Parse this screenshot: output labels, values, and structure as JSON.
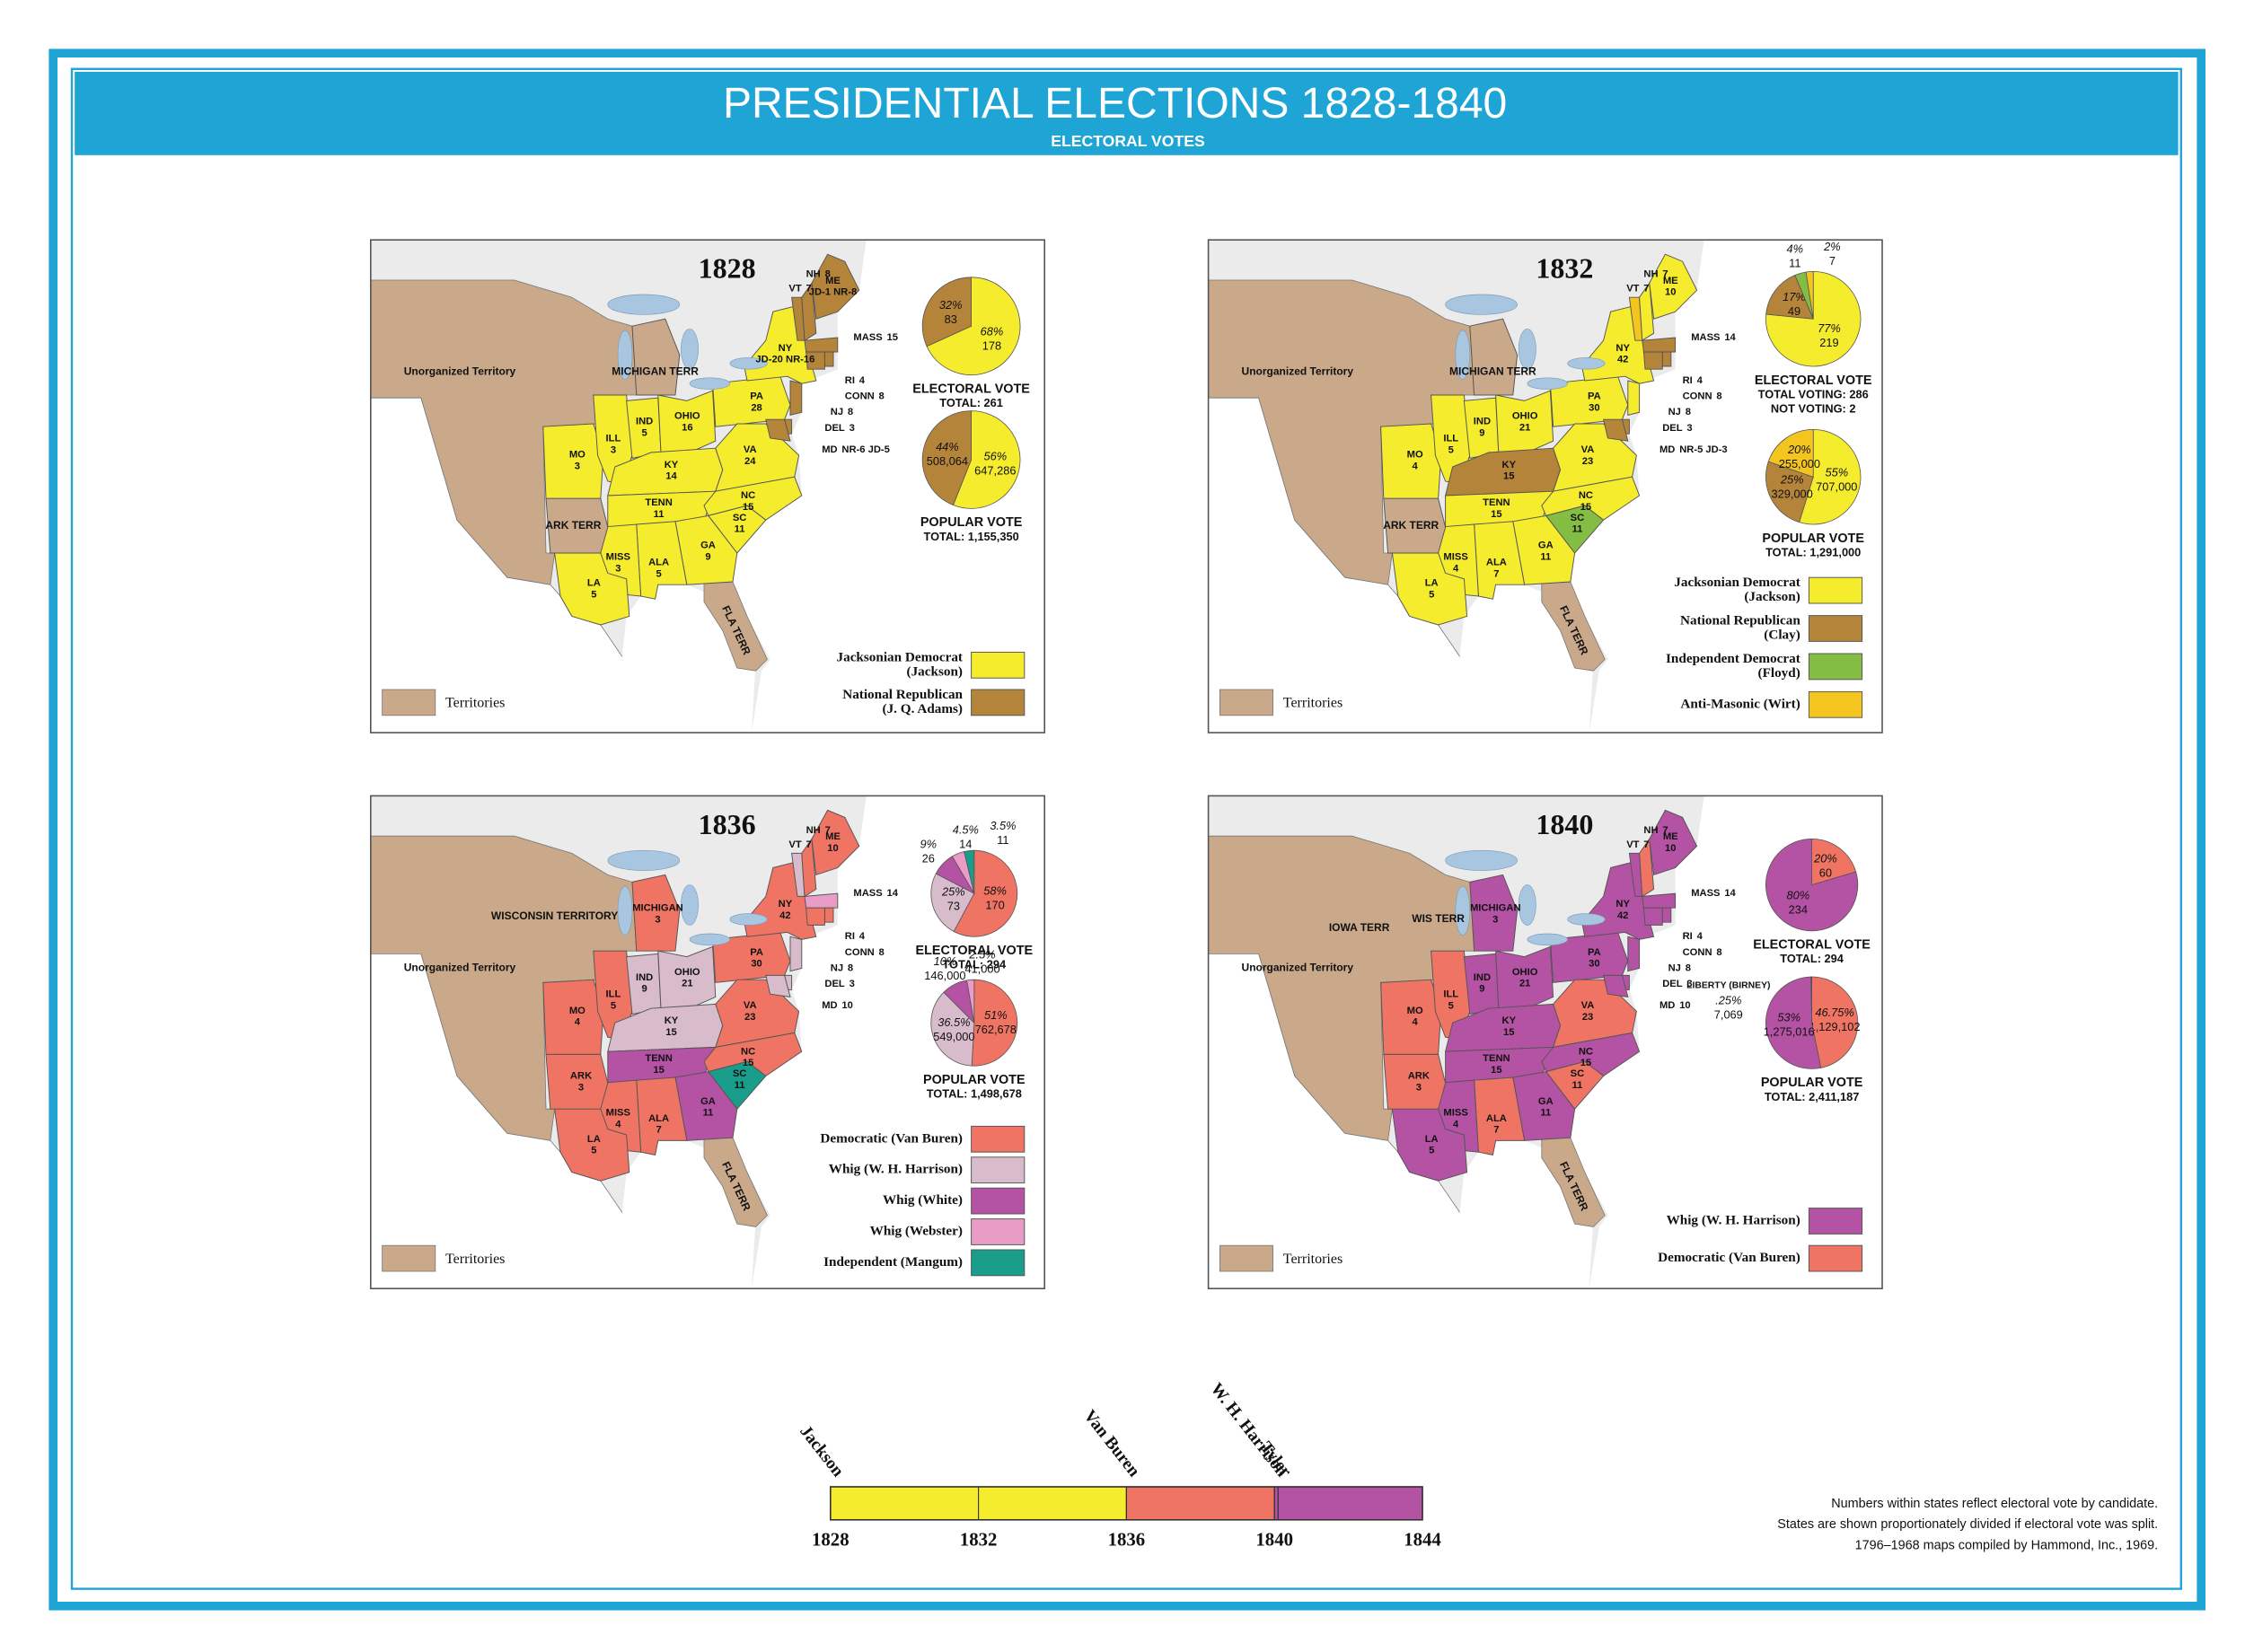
{
  "header": {
    "title": "PRESIDENTIAL ELECTIONS 1828-1840",
    "subtitle": "ELECTORAL VOTES"
  },
  "territory_color": "#c9a98a",
  "maps": [
    {
      "year": "1828",
      "territories": [
        "Unorganized Territory",
        "MICHIGAN TERR",
        "ARK TERR",
        "FLA TERR"
      ],
      "territory_key": "Territories",
      "states": [
        {
          "name": "MO",
          "votes": 3,
          "color": "#f5ec2d"
        },
        {
          "name": "ILL",
          "votes": 3,
          "color": "#f5ec2d"
        },
        {
          "name": "IND",
          "votes": 5,
          "color": "#f5ec2d"
        },
        {
          "name": "OHIO",
          "votes": 16,
          "color": "#f5ec2d"
        },
        {
          "name": "PA",
          "votes": 28,
          "color": "#f5ec2d"
        },
        {
          "name": "KY",
          "votes": 14,
          "color": "#f5ec2d"
        },
        {
          "name": "VA",
          "votes": 24,
          "color": "#f5ec2d"
        },
        {
          "name": "TENN",
          "votes": 11,
          "color": "#f5ec2d"
        },
        {
          "name": "NC",
          "votes": 15,
          "color": "#f5ec2d"
        },
        {
          "name": "SC",
          "votes": 11,
          "color": "#f5ec2d"
        },
        {
          "name": "GA",
          "votes": 9,
          "color": "#f5ec2d"
        },
        {
          "name": "ALA",
          "votes": 5,
          "color": "#f5ec2d"
        },
        {
          "name": "MISS",
          "votes": 3,
          "color": "#f5ec2d"
        },
        {
          "name": "LA",
          "votes": 5,
          "color": "#f5ec2d"
        },
        {
          "name": "NY",
          "votes": "JD-20 NR-16",
          "color": "#f5ec2d"
        },
        {
          "name": "VT",
          "votes": 7,
          "color": "#b5843b"
        },
        {
          "name": "NH",
          "votes": 8,
          "color": "#b5843b"
        },
        {
          "name": "ME",
          "votes": "JD-1 NR-8",
          "color": "#b5843b"
        },
        {
          "name": "MASS",
          "votes": 15,
          "color": "#b5843b"
        },
        {
          "name": "RI",
          "votes": 4,
          "color": "#b5843b"
        },
        {
          "name": "CONN",
          "votes": 8,
          "color": "#b5843b"
        },
        {
          "name": "NJ",
          "votes": 8,
          "color": "#b5843b"
        },
        {
          "name": "DEL",
          "votes": 3,
          "color": "#b5843b"
        },
        {
          "name": "MD",
          "votes": "NR-6 JD-5",
          "color": "#b5843b"
        }
      ],
      "electoral": {
        "caption": [
          "ELECTORAL VOTE",
          "TOTAL: 261"
        ],
        "slices": [
          {
            "value": 178,
            "percent_label": "68%",
            "color": "#f5ec2d"
          },
          {
            "value": 83,
            "percent_label": "32%",
            "color": "#b5843b"
          }
        ]
      },
      "popular": {
        "caption": [
          "POPULAR VOTE",
          "TOTAL: 1,155,350"
        ],
        "slices": [
          {
            "value": 647286,
            "value_label": "647,286",
            "percent_label": "56%",
            "color": "#f5ec2d"
          },
          {
            "value": 508064,
            "value_label": "508,064",
            "percent_label": "44%",
            "color": "#b5843b"
          }
        ]
      },
      "legend": [
        {
          "label": "Jacksonian Democrat",
          "sublabel": "(Jackson)",
          "color": "#f5ec2d"
        },
        {
          "label": "National Republican",
          "sublabel": "(J. Q. Adams)",
          "color": "#b5843b"
        }
      ]
    },
    {
      "year": "1832",
      "territories": [
        "Unorganized Territory",
        "MICHIGAN TERR",
        "ARK TERR",
        "FLA TERR"
      ],
      "territory_key": "Territories",
      "states": [
        {
          "name": "MO",
          "votes": 4,
          "color": "#f5ec2d"
        },
        {
          "name": "ILL",
          "votes": 5,
          "color": "#f5ec2d"
        },
        {
          "name": "IND",
          "votes": 9,
          "color": "#f5ec2d"
        },
        {
          "name": "OHIO",
          "votes": 21,
          "color": "#f5ec2d"
        },
        {
          "name": "PA",
          "votes": 30,
          "color": "#f5ec2d"
        },
        {
          "name": "KY",
          "votes": 15,
          "color": "#b5843b"
        },
        {
          "name": "VA",
          "votes": 23,
          "color": "#f5ec2d"
        },
        {
          "name": "TENN",
          "votes": 15,
          "color": "#f5ec2d"
        },
        {
          "name": "NC",
          "votes": 15,
          "color": "#f5ec2d"
        },
        {
          "name": "SC",
          "votes": 11,
          "color": "#84bd44"
        },
        {
          "name": "GA",
          "votes": 11,
          "color": "#f5ec2d"
        },
        {
          "name": "ALA",
          "votes": 7,
          "color": "#f5ec2d"
        },
        {
          "name": "MISS",
          "votes": 4,
          "color": "#f5ec2d"
        },
        {
          "name": "LA",
          "votes": 5,
          "color": "#f5ec2d"
        },
        {
          "name": "NY",
          "votes": 42,
          "color": "#f5ec2d"
        },
        {
          "name": "VT",
          "votes": 7,
          "color": "#f4c51f"
        },
        {
          "name": "NH",
          "votes": 7,
          "color": "#f5ec2d"
        },
        {
          "name": "ME",
          "votes": 10,
          "color": "#f5ec2d"
        },
        {
          "name": "MASS",
          "votes": 14,
          "color": "#b5843b"
        },
        {
          "name": "RI",
          "votes": 4,
          "color": "#b5843b"
        },
        {
          "name": "CONN",
          "votes": 8,
          "color": "#b5843b"
        },
        {
          "name": "NJ",
          "votes": 8,
          "color": "#f5ec2d"
        },
        {
          "name": "DEL",
          "votes": 3,
          "color": "#b5843b"
        },
        {
          "name": "MD",
          "votes": "NR-5 JD-3",
          "color": "#b5843b"
        }
      ],
      "electoral": {
        "caption": [
          "ELECTORAL VOTE",
          "TOTAL VOTING: 286",
          "NOT VOTING: 2"
        ],
        "slices": [
          {
            "value": 219,
            "percent_label": "77%",
            "color": "#f5ec2d"
          },
          {
            "value": 49,
            "percent_label": "17%",
            "color": "#b5843b"
          },
          {
            "value": 11,
            "percent_label": "4%",
            "color": "#84bd44"
          },
          {
            "value": 7,
            "percent_label": "2%",
            "color": "#f4c51f"
          }
        ]
      },
      "popular": {
        "caption": [
          "POPULAR VOTE",
          "TOTAL: 1,291,000"
        ],
        "slices": [
          {
            "value": 707000,
            "value_label": "707,000",
            "percent_label": "55%",
            "color": "#f5ec2d"
          },
          {
            "value": 329000,
            "value_label": "329,000",
            "percent_label": "25%",
            "color": "#b5843b"
          },
          {
            "value": 255000,
            "value_label": "255,000",
            "percent_label": "20%",
            "color": "#f4c51f"
          }
        ]
      },
      "legend": [
        {
          "label": "Jacksonian Democrat",
          "sublabel": "(Jackson)",
          "color": "#f5ec2d"
        },
        {
          "label": "National Republican",
          "sublabel": "(Clay)",
          "color": "#b5843b"
        },
        {
          "label": "Independent Democrat",
          "sublabel": "(Floyd)",
          "color": "#84bd44"
        },
        {
          "label": "Anti-Masonic (Wirt)",
          "color": "#f4c51f"
        }
      ]
    },
    {
      "year": "1836",
      "territories": [
        "WISCONSIN TERRITORY",
        "Unorganized Territory",
        "FLA TERR"
      ],
      "territory_key": "Territories",
      "states": [
        {
          "name": "MO",
          "votes": 4,
          "color": "#f07463"
        },
        {
          "name": "ILL",
          "votes": 5,
          "color": "#f07463"
        },
        {
          "name": "IND",
          "votes": 9,
          "color": "#d8bccb"
        },
        {
          "name": "OHIO",
          "votes": 21,
          "color": "#d8bccb"
        },
        {
          "name": "PA",
          "votes": 30,
          "color": "#f07463"
        },
        {
          "name": "KY",
          "votes": 15,
          "color": "#d8bccb"
        },
        {
          "name": "VA",
          "votes": 23,
          "color": "#f07463"
        },
        {
          "name": "TENN",
          "votes": 15,
          "color": "#b452a4"
        },
        {
          "name": "NC",
          "votes": 15,
          "color": "#f07463"
        },
        {
          "name": "SC",
          "votes": 11,
          "color": "#1a9d8a"
        },
        {
          "name": "GA",
          "votes": 11,
          "color": "#b452a4"
        },
        {
          "name": "ALA",
          "votes": 7,
          "color": "#f07463"
        },
        {
          "name": "MISS",
          "votes": 4,
          "color": "#f07463"
        },
        {
          "name": "LA",
          "votes": 5,
          "color": "#f07463"
        },
        {
          "name": "NY",
          "votes": 42,
          "color": "#f07463"
        },
        {
          "name": "VT",
          "votes": 7,
          "color": "#d8bccb"
        },
        {
          "name": "NH",
          "votes": 7,
          "color": "#f07463"
        },
        {
          "name": "ME",
          "votes": 10,
          "color": "#f07463"
        },
        {
          "name": "MASS",
          "votes": 14,
          "color": "#e99cc6"
        },
        {
          "name": "RI",
          "votes": 4,
          "color": "#f07463"
        },
        {
          "name": "CONN",
          "votes": 8,
          "color": "#f07463"
        },
        {
          "name": "NJ",
          "votes": 8,
          "color": "#d8bccb"
        },
        {
          "name": "DEL",
          "votes": 3,
          "color": "#d8bccb"
        },
        {
          "name": "MD",
          "votes": 10,
          "color": "#d8bccb"
        },
        {
          "name": "ARK",
          "votes": 3,
          "color": "#f07463"
        },
        {
          "name": "MICHIGAN",
          "votes": 3,
          "color": "#f07463"
        }
      ],
      "electoral": {
        "caption": [
          "ELECTORAL VOTE",
          "TOTAL: 294"
        ],
        "slices": [
          {
            "value": 170,
            "percent_label": "58%",
            "color": "#f07463"
          },
          {
            "value": 73,
            "percent_label": "25%",
            "color": "#d8bccb"
          },
          {
            "value": 26,
            "percent_label": "9%",
            "color": "#b452a4"
          },
          {
            "value": 14,
            "percent_label": "4.5%",
            "color": "#e99cc6"
          },
          {
            "value": 11,
            "percent_label": "3.5%",
            "color": "#1a9d8a"
          }
        ]
      },
      "popular": {
        "caption": [
          "POPULAR VOTE",
          "TOTAL: 1,498,678"
        ],
        "slices": [
          {
            "value": 762678,
            "value_label": "762,678",
            "percent_label": "51%",
            "color": "#f07463"
          },
          {
            "value": 549000,
            "value_label": "549,000",
            "percent_label": "36.5%",
            "color": "#d8bccb"
          },
          {
            "value": 146000,
            "value_label": "146,000",
            "percent_label": "10%",
            "color": "#b452a4"
          },
          {
            "value": 41000,
            "value_label": "41,000",
            "percent_label": "2.5%",
            "color": "#e99cc6"
          }
        ]
      },
      "legend": [
        {
          "label": "Democratic (Van Buren)",
          "color": "#f07463"
        },
        {
          "label": "Whig (W. H. Harrison)",
          "color": "#d8bccb"
        },
        {
          "label": "Whig (White)",
          "color": "#b452a4"
        },
        {
          "label": "Whig (Webster)",
          "color": "#e99cc6"
        },
        {
          "label": "Independent (Mangum)",
          "color": "#1a9d8a"
        }
      ]
    },
    {
      "year": "1840",
      "territories": [
        "IOWA TERR",
        "WIS TERR",
        "Unorganized Territory",
        "FLA TERR"
      ],
      "territory_key": "Territories",
      "states": [
        {
          "name": "MO",
          "votes": 4,
          "color": "#f07463"
        },
        {
          "name": "ILL",
          "votes": 5,
          "color": "#f07463"
        },
        {
          "name": "IND",
          "votes": 9,
          "color": "#b452a4"
        },
        {
          "name": "OHIO",
          "votes": 21,
          "color": "#b452a4"
        },
        {
          "name": "PA",
          "votes": 30,
          "color": "#b452a4"
        },
        {
          "name": "KY",
          "votes": 15,
          "color": "#b452a4"
        },
        {
          "name": "VA",
          "votes": 23,
          "color": "#f07463"
        },
        {
          "name": "TENN",
          "votes": 15,
          "color": "#b452a4"
        },
        {
          "name": "NC",
          "votes": 15,
          "color": "#b452a4"
        },
        {
          "name": "SC",
          "votes": 11,
          "color": "#f07463"
        },
        {
          "name": "GA",
          "votes": 11,
          "color": "#b452a4"
        },
        {
          "name": "ALA",
          "votes": 7,
          "color": "#f07463"
        },
        {
          "name": "MISS",
          "votes": 4,
          "color": "#b452a4"
        },
        {
          "name": "LA",
          "votes": 5,
          "color": "#b452a4"
        },
        {
          "name": "NY",
          "votes": 42,
          "color": "#b452a4"
        },
        {
          "name": "VT",
          "votes": 7,
          "color": "#b452a4"
        },
        {
          "name": "NH",
          "votes": 7,
          "color": "#f07463"
        },
        {
          "name": "ME",
          "votes": 10,
          "color": "#b452a4"
        },
        {
          "name": "MASS",
          "votes": 14,
          "color": "#b452a4"
        },
        {
          "name": "RI",
          "votes": 4,
          "color": "#b452a4"
        },
        {
          "name": "CONN",
          "votes": 8,
          "color": "#b452a4"
        },
        {
          "name": "NJ",
          "votes": 8,
          "color": "#b452a4"
        },
        {
          "name": "DEL",
          "votes": 3,
          "color": "#b452a4"
        },
        {
          "name": "MD",
          "votes": 10,
          "color": "#b452a4"
        },
        {
          "name": "ARK",
          "votes": 3,
          "color": "#f07463"
        },
        {
          "name": "MICHIGAN",
          "votes": 3,
          "color": "#b452a4"
        }
      ],
      "electoral": {
        "caption": [
          "ELECTORAL VOTE",
          "TOTAL: 294"
        ],
        "slices": [
          {
            "value": 60,
            "percent_label": "20%",
            "color": "#f07463"
          },
          {
            "value": 234,
            "percent_label": "80%",
            "color": "#b452a4"
          }
        ]
      },
      "popular": {
        "caption": [
          "POPULAR VOTE",
          "TOTAL: 2,411,187"
        ],
        "slices": [
          {
            "value": 1129102,
            "value_label": "1,129,102",
            "percent_label": "46.75%",
            "color": "#f07463"
          },
          {
            "value": 1275016,
            "value_label": "1,275,016",
            "percent_label": "53%",
            "color": "#b452a4"
          },
          {
            "value": 7069,
            "value_label": "7,069",
            "percent_label": ".25%",
            "color": "#333333",
            "name": "LIBERTY (BIRNEY)"
          }
        ]
      },
      "legend": [
        {
          "label": "Whig (W. H. Harrison)",
          "color": "#b452a4"
        },
        {
          "label": "Democratic (Van Buren)",
          "color": "#f07463"
        }
      ]
    }
  ],
  "timeline": {
    "xlim": [
      1828,
      1844
    ],
    "ticks": [
      1828,
      1832,
      1836,
      1840,
      1844
    ],
    "presidents": [
      {
        "name": "Jackson",
        "start": 1828,
        "color": "#f5ec2d"
      },
      {
        "name": "Van Buren",
        "start": 1836,
        "color": "#f07463"
      },
      {
        "name": "W. H. Harrison",
        "start": 1840,
        "color": "#b452a4"
      },
      {
        "name": "Tyler",
        "start": 1840.1,
        "color": "#b452a4"
      }
    ]
  },
  "notes": [
    "Numbers within states reflect electoral vote by candidate.",
    "States are shown proportionately divided if electoral vote was split.",
    "1796–1968 maps compiled by Hammond, Inc., 1969."
  ]
}
